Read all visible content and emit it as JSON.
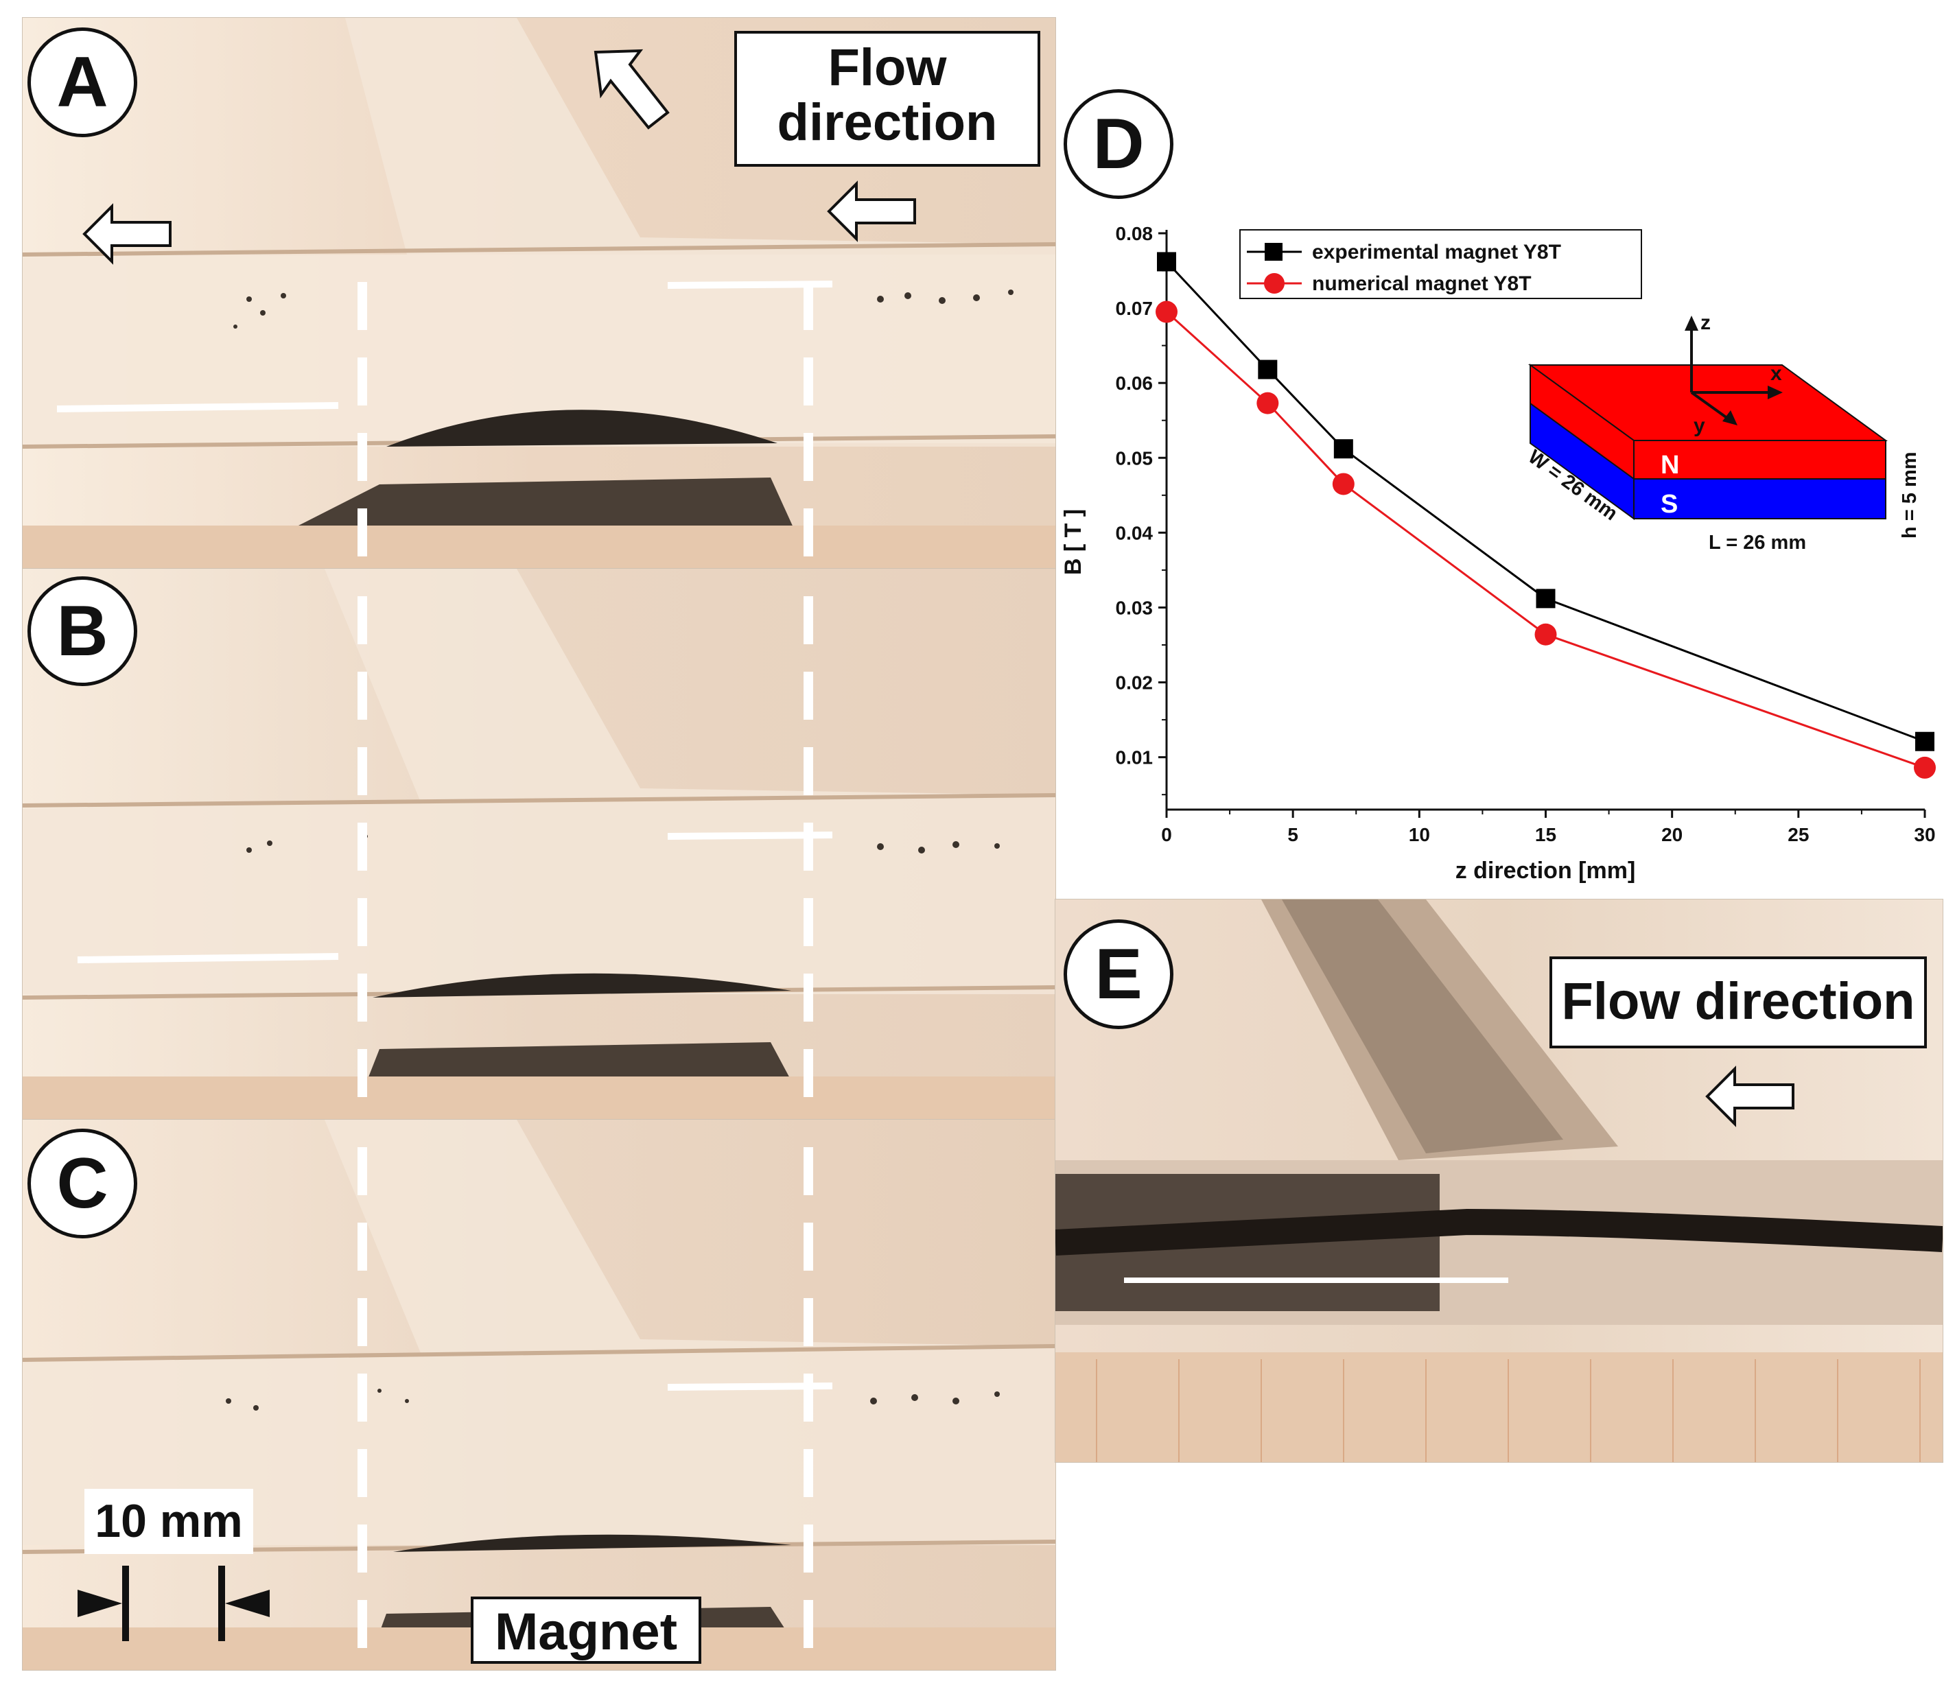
{
  "panels": {
    "A": "A",
    "B": "B",
    "C": "C",
    "D": "D",
    "E": "E"
  },
  "annotations": {
    "flow_direction_a_line1": "Flow",
    "flow_direction_a_line2": "direction",
    "flow_direction_e": "Flow direction",
    "scale_bar": "10 mm",
    "magnet": "Magnet"
  },
  "colors": {
    "photo_background": "#efd9c4",
    "tube": "#f6ece2",
    "particles": "#2a2520",
    "experimental_series": "#000000",
    "numerical_series": "#e8191e",
    "magnet_north": "#ff0000",
    "magnet_south": "#0000ff"
  },
  "chart_data": {
    "type": "line",
    "title": "",
    "xlabel": "z direction [mm]",
    "ylabel": "B [ T ]",
    "xlim": [
      0,
      30
    ],
    "ylim": [
      0.003,
      0.08
    ],
    "xticks": [
      "0",
      "5",
      "10",
      "15",
      "20",
      "25",
      "30"
    ],
    "yticks": [
      "0.01",
      "0.02",
      "0.03",
      "0.04",
      "0.05",
      "0.06",
      "0.07",
      "0.08"
    ],
    "legend_position": "top-center",
    "series": [
      {
        "name": "experimental magnet Y8T",
        "marker": "square",
        "color": "#000000",
        "x": [
          0,
          4,
          7,
          15,
          30
        ],
        "y": [
          0.0762,
          0.0618,
          0.0512,
          0.0312,
          0.0121
        ]
      },
      {
        "name": "numerical magnet Y8T",
        "marker": "circle",
        "color": "#e8191e",
        "x": [
          0,
          4,
          7,
          15,
          30
        ],
        "y": [
          0.0695,
          0.0573,
          0.0465,
          0.0264,
          0.0086
        ]
      }
    ],
    "inset": {
      "axis_z": "z",
      "axis_x": "x",
      "axis_y": "y",
      "north": "N",
      "south": "S",
      "width_label": "W = 26 mm",
      "length_label": "L = 26 mm",
      "height_label": "h = 5 mm"
    }
  }
}
